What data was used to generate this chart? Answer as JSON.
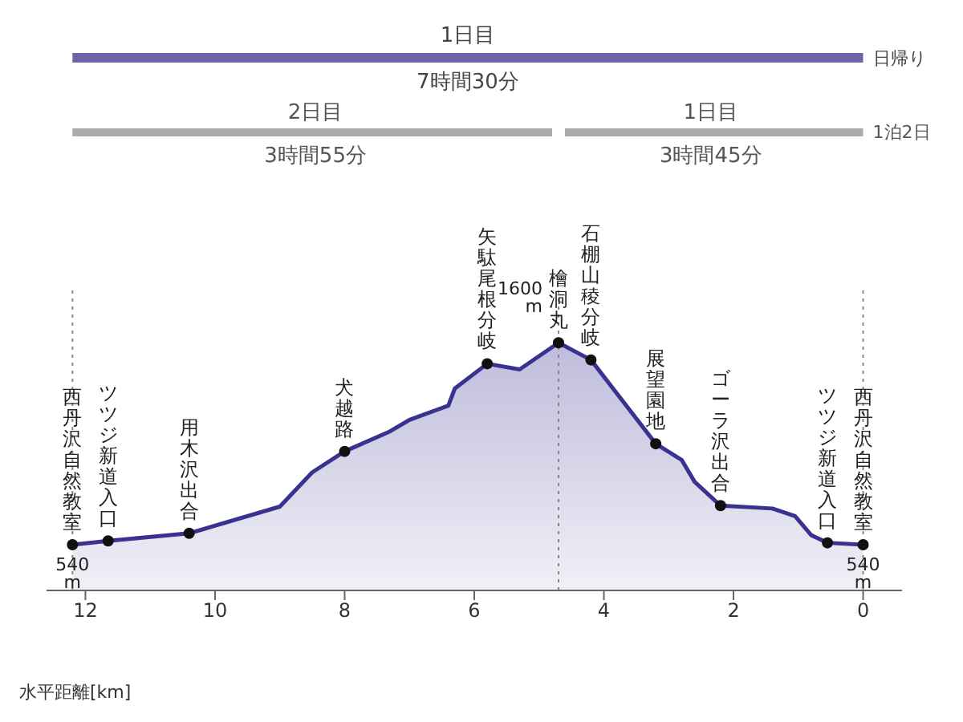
{
  "chart_data": {
    "type": "area",
    "xlabel": "水平距離[km]",
    "x": [
      12.2,
      11.65,
      10.4,
      9.0,
      8.5,
      8.0,
      7.3,
      7.0,
      6.4,
      6.3,
      5.8,
      5.3,
      4.7,
      4.2,
      3.2,
      2.8,
      2.6,
      2.2,
      1.4,
      1.05,
      0.8,
      0.55,
      0
    ],
    "series": [
      {
        "color": "#3a3290",
        "values": [
          540,
          560,
          600,
          740,
          920,
          1030,
          1135,
          1195,
          1270,
          1360,
          1490,
          1460,
          1600,
          1510,
          1070,
          985,
          870,
          745,
          730,
          690,
          590,
          550,
          540
        ],
        "value_labels": [
          "540 m",
          null,
          null,
          null,
          null,
          null,
          null,
          null,
          null,
          null,
          null,
          null,
          "1600 m",
          null,
          null,
          null,
          null,
          null,
          null,
          null,
          null,
          null,
          "540 m"
        ]
      }
    ],
    "xlim": [
      12.6,
      -0.6
    ],
    "xticks": [
      12,
      10,
      8,
      6,
      4,
      2,
      0
    ],
    "ylim": [
      300,
      1900
    ],
    "tick_labels": "x",
    "legend": false,
    "ref_lines": [
      {
        "axis": "x",
        "value": 12.2,
        "line_style": "dotted",
        "color": "#888888"
      },
      {
        "axis": "x",
        "value": 4.7,
        "line_style": "dotted",
        "color": "#888888"
      },
      {
        "axis": "x",
        "value": 0,
        "line_style": "dotted",
        "color": "#888888"
      }
    ],
    "annotations": [
      "1日目",
      "7時間30分",
      "日帰り",
      "2日目",
      "3時間55分",
      "1日目",
      "3時間45分",
      "1泊2日",
      {
        "text": "西丹沢自然教室",
        "x": 12.2,
        "y": 540
      },
      {
        "text": "ツツジ新道入口",
        "x": 11.65,
        "y": 560
      },
      {
        "text": "用木沢出合",
        "x": 10.4,
        "y": 600
      },
      {
        "text": "犬越路",
        "x": 8.0,
        "y": 1030
      },
      {
        "text": "矢駄尾根分岐",
        "x": 5.8,
        "y": 1490
      },
      {
        "text": "檜洞丸",
        "x": 4.7,
        "y": 1600
      },
      {
        "text": "石棚山稜分岐",
        "x": 4.2,
        "y": 1510
      },
      {
        "text": "展望園地",
        "x": 3.2,
        "y": 1070
      },
      {
        "text": "ゴーラ沢出合",
        "x": 2.2,
        "y": 745
      },
      {
        "text": "ツツジ新道入口",
        "x": 0.55,
        "y": 550
      },
      {
        "text": "西丹沢自然教室",
        "x": 0,
        "y": 540
      }
    ]
  }
}
